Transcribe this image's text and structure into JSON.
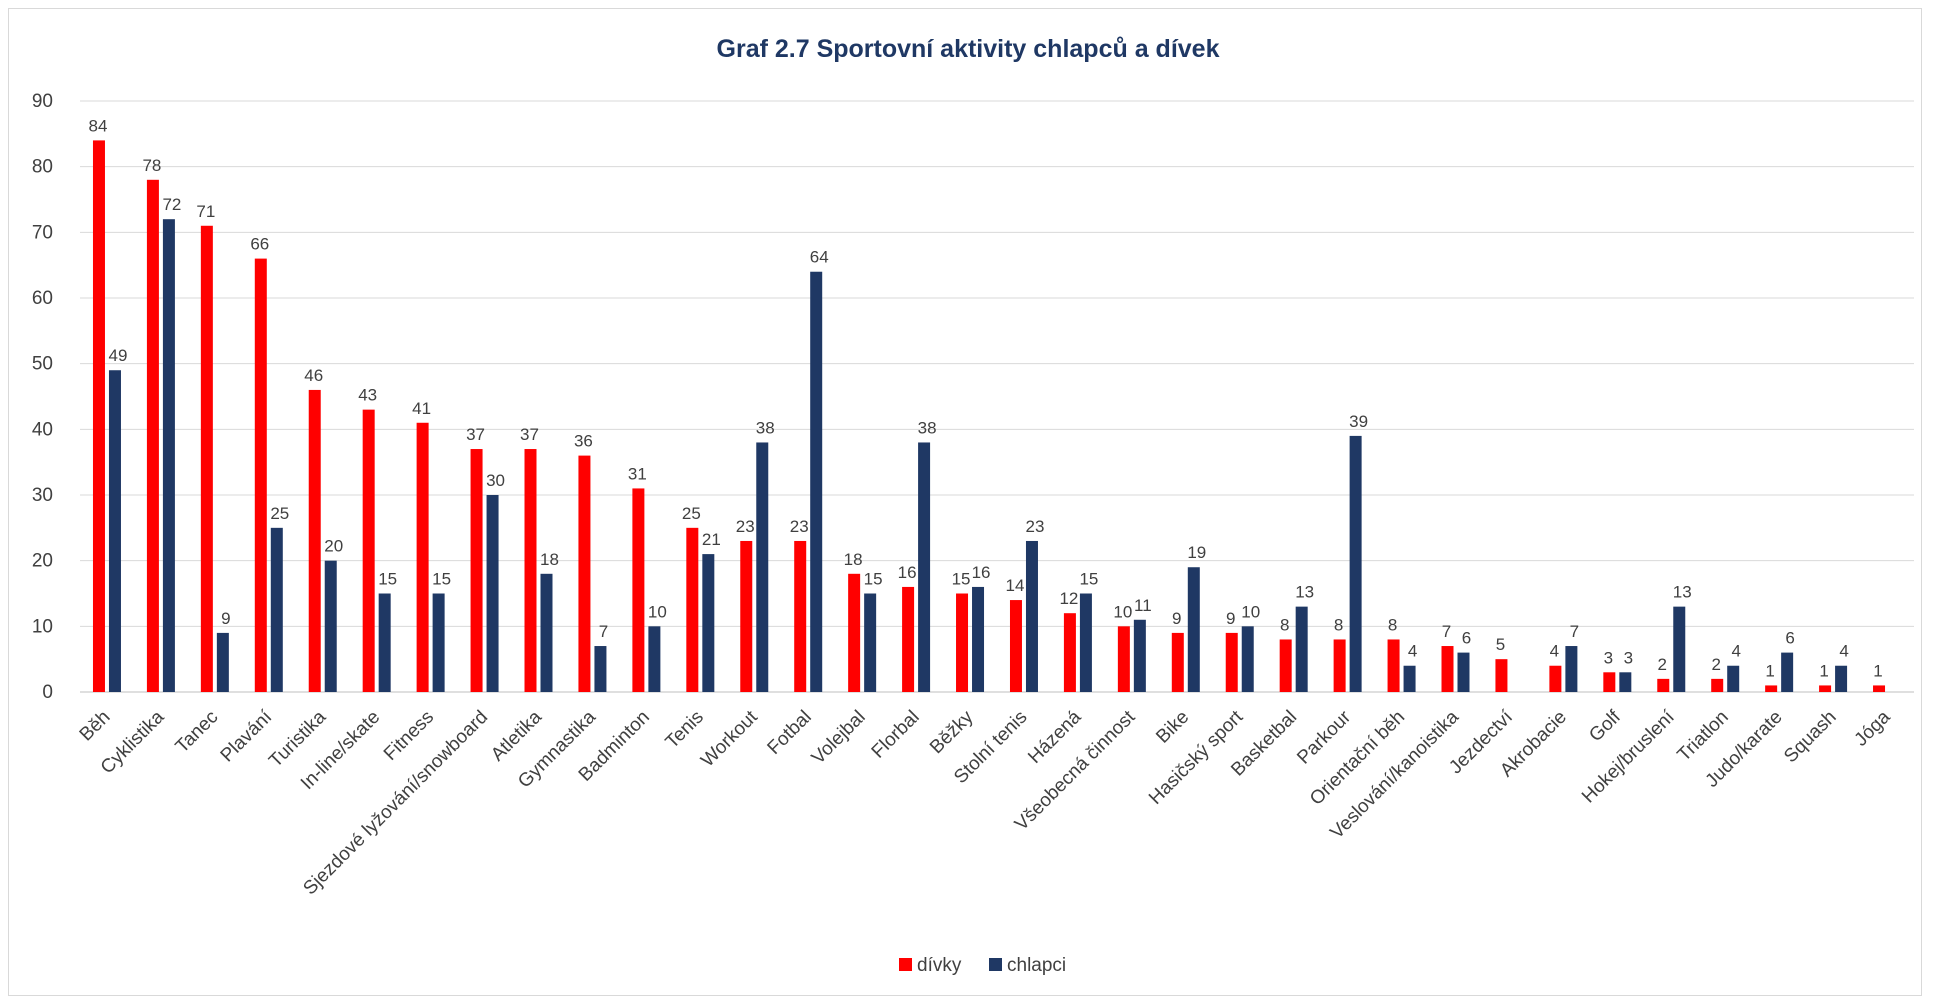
{
  "chart_data": {
    "type": "bar",
    "title": "Graf 2.7 Sportovní aktivity chlapců a dívek",
    "xlabel": "",
    "ylabel": "",
    "ylim": [
      0,
      90
    ],
    "yticks": [
      0,
      10,
      20,
      30,
      40,
      50,
      60,
      70,
      80,
      90
    ],
    "grid": true,
    "legend_position": "bottom",
    "categories": [
      "Běh",
      "Cyklistika",
      "Tanec",
      "Plavání",
      "Turistika",
      "In-line/skate",
      "Fitness",
      "Sjezdové lyžování/snowboard",
      "Atletika",
      "Gymnastika",
      "Badminton",
      "Tenis",
      "Workout",
      "Fotbal",
      "Volejbal",
      "Florbal",
      "Běžky",
      "Stolní tenis",
      "Házená",
      "Všeobecná činnost",
      "Bike",
      "Hasičský sport",
      "Basketbal",
      "Parkour",
      "Orientační běh",
      "Veslování/kanoistika",
      "Jezdectví",
      "Akrobacie",
      "Golf",
      "Hokej/bruslení",
      "Triatlon",
      "Judo/karate",
      "Squash",
      "Jóga"
    ],
    "series": [
      {
        "name": "dívky",
        "color": "#ff0000",
        "values": [
          84,
          78,
          71,
          66,
          46,
          43,
          41,
          37,
          37,
          36,
          31,
          25,
          23,
          23,
          18,
          16,
          15,
          14,
          12,
          10,
          9,
          9,
          8,
          8,
          8,
          7,
          5,
          4,
          3,
          2,
          2,
          1,
          1,
          1
        ]
      },
      {
        "name": "chlapci",
        "color": "#1f3864",
        "values": [
          49,
          72,
          9,
          25,
          20,
          15,
          15,
          30,
          18,
          7,
          10,
          21,
          38,
          64,
          15,
          38,
          16,
          23,
          15,
          11,
          19,
          10,
          13,
          39,
          4,
          6,
          null,
          7,
          3,
          13,
          4,
          6,
          4,
          null
        ]
      }
    ]
  }
}
